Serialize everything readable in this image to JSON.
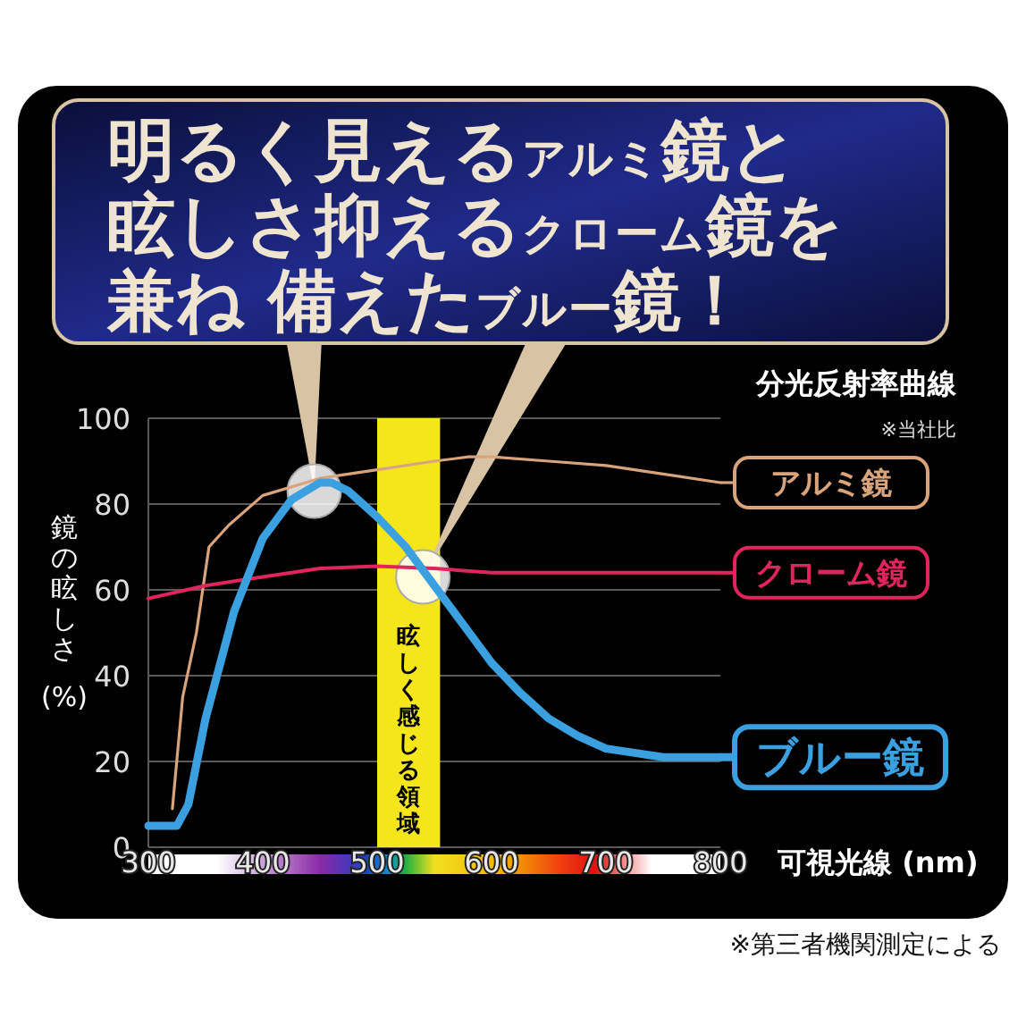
{
  "chart_data": {
    "type": "line",
    "title": "明るく見えるアルミ鏡と眩しさ抑えるクローム鏡を兼ね 備えたブルー鏡！",
    "subtitle": "分光反射率曲線",
    "ylabel": "鏡の眩しさ\n(%)",
    "xlabel": "可視光線 (nm)",
    "annotations": [
      "※当社比",
      "※第三者機関測定による"
    ],
    "xlim": [
      300,
      800
    ],
    "xticks": [
      300,
      400,
      500,
      600,
      700,
      800
    ],
    "ylim": [
      0,
      100
    ],
    "yticks": [
      0,
      20,
      40,
      60,
      80,
      100
    ],
    "grid": "y",
    "legend": "right",
    "bands": [
      {
        "axis": "x",
        "from": 500,
        "to": 555,
        "label": "眩しく感じる領域",
        "color": "#f5e61c"
      }
    ],
    "series": [
      {
        "name": "アルミ鏡",
        "color": "#d9a47c",
        "x": [
          321,
          330,
          342,
          353,
          370,
          400,
          450,
          500,
          550,
          580,
          600,
          650,
          700,
          750,
          800
        ],
        "values": [
          9,
          35,
          50,
          70,
          75,
          82,
          86,
          88,
          90,
          91,
          91,
          90,
          89,
          87,
          85
        ]
      },
      {
        "name": "クローム鏡",
        "color": "#e0245e",
        "x": [
          300,
          350,
          400,
          450,
          500,
          550,
          600,
          700,
          800
        ],
        "values": [
          58,
          61,
          63,
          65,
          65.5,
          65,
          64,
          64,
          64
        ]
      },
      {
        "name": "ブルー鏡",
        "color": "#3aa0e0",
        "x": [
          300,
          325,
          335,
          350,
          375,
          400,
          425,
          450,
          460,
          475,
          500,
          525,
          550,
          575,
          600,
          625,
          650,
          675,
          700,
          725,
          750,
          800
        ],
        "values": [
          5,
          5,
          10,
          30,
          55,
          72,
          81,
          85,
          85,
          83,
          77,
          70,
          61,
          52,
          43,
          36,
          30,
          26,
          23,
          22,
          21,
          21
        ]
      }
    ]
  }
}
